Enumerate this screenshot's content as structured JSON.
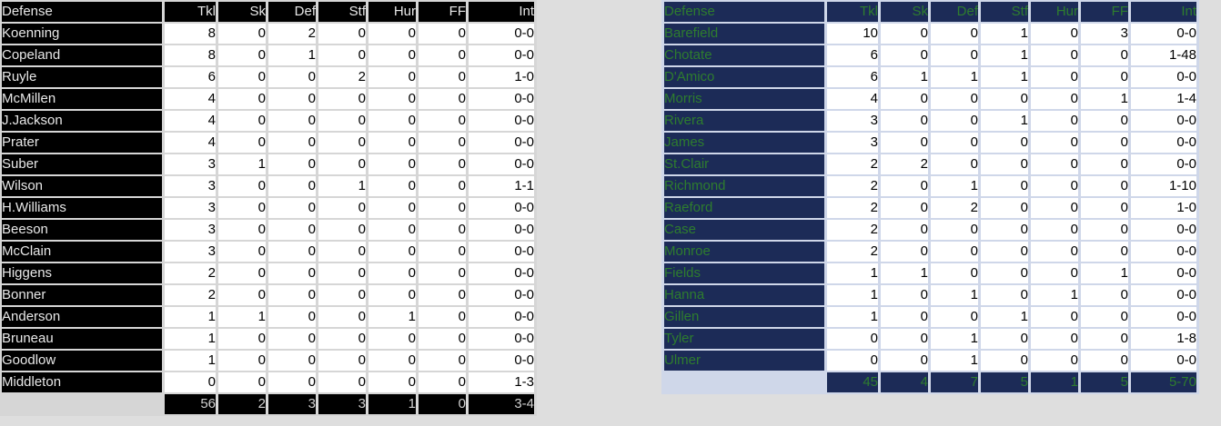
{
  "page": {
    "background": "#dedede"
  },
  "tables": [
    {
      "name": "defense-table-left",
      "theme": {
        "cell_bg": "#000000",
        "cell_text": "#e8e8e8",
        "total_text": "#d0d0d0",
        "gap": "#d6d6d6",
        "data_bg": "#ffffff",
        "data_text": "#000000"
      },
      "columns": [
        "Defense",
        "Tkl",
        "Sk",
        "Def",
        "Stf",
        "Hur",
        "FF",
        "Int"
      ],
      "rows": [
        [
          "Koenning",
          "8",
          "0",
          "2",
          "0",
          "0",
          "0",
          "0-0"
        ],
        [
          "Copeland",
          "8",
          "0",
          "1",
          "0",
          "0",
          "0",
          "0-0"
        ],
        [
          "Ruyle",
          "6",
          "0",
          "0",
          "2",
          "0",
          "0",
          "1-0"
        ],
        [
          "McMillen",
          "4",
          "0",
          "0",
          "0",
          "0",
          "0",
          "0-0"
        ],
        [
          "J.Jackson",
          "4",
          "0",
          "0",
          "0",
          "0",
          "0",
          "0-0"
        ],
        [
          "Prater",
          "4",
          "0",
          "0",
          "0",
          "0",
          "0",
          "0-0"
        ],
        [
          "Suber",
          "3",
          "1",
          "0",
          "0",
          "0",
          "0",
          "0-0"
        ],
        [
          "Wilson",
          "3",
          "0",
          "0",
          "1",
          "0",
          "0",
          "1-1"
        ],
        [
          "H.Williams",
          "3",
          "0",
          "0",
          "0",
          "0",
          "0",
          "0-0"
        ],
        [
          "Beeson",
          "3",
          "0",
          "0",
          "0",
          "0",
          "0",
          "0-0"
        ],
        [
          "McClain",
          "3",
          "0",
          "0",
          "0",
          "0",
          "0",
          "0-0"
        ],
        [
          "Higgens",
          "2",
          "0",
          "0",
          "0",
          "0",
          "0",
          "0-0"
        ],
        [
          "Bonner",
          "2",
          "0",
          "0",
          "0",
          "0",
          "0",
          "0-0"
        ],
        [
          "Anderson",
          "1",
          "1",
          "0",
          "0",
          "1",
          "0",
          "0-0"
        ],
        [
          "Bruneau",
          "1",
          "0",
          "0",
          "0",
          "0",
          "0",
          "0-0"
        ],
        [
          "Goodlow",
          "1",
          "0",
          "0",
          "0",
          "0",
          "0",
          "0-0"
        ],
        [
          "Middleton",
          "0",
          "0",
          "0",
          "0",
          "0",
          "0",
          "1-3"
        ]
      ],
      "totals": [
        "56",
        "2",
        "3",
        "3",
        "1",
        "0",
        "3-4"
      ]
    },
    {
      "name": "defense-table-right",
      "theme": {
        "cell_bg": "#1c2b57",
        "cell_text": "#2e7d2e",
        "total_text": "#2e7d2e",
        "gap": "#cfd7e9",
        "data_bg": "#ffffff",
        "data_text": "#000000"
      },
      "columns": [
        "Defense",
        "Tkl",
        "Sk",
        "Def",
        "Stf",
        "Hur",
        "FF",
        "Int"
      ],
      "rows": [
        [
          "Barefield",
          "10",
          "0",
          "0",
          "1",
          "0",
          "3",
          "0-0"
        ],
        [
          "Chotate",
          "6",
          "0",
          "0",
          "1",
          "0",
          "0",
          "1-48"
        ],
        [
          "D'Amico",
          "6",
          "1",
          "1",
          "1",
          "0",
          "0",
          "0-0"
        ],
        [
          "Morris",
          "4",
          "0",
          "0",
          "0",
          "0",
          "1",
          "1-4"
        ],
        [
          "Rivera",
          "3",
          "0",
          "0",
          "1",
          "0",
          "0",
          "0-0"
        ],
        [
          "James",
          "3",
          "0",
          "0",
          "0",
          "0",
          "0",
          "0-0"
        ],
        [
          "St.Clair",
          "2",
          "2",
          "0",
          "0",
          "0",
          "0",
          "0-0"
        ],
        [
          "Richmond",
          "2",
          "0",
          "1",
          "0",
          "0",
          "0",
          "1-10"
        ],
        [
          "Raeford",
          "2",
          "0",
          "2",
          "0",
          "0",
          "0",
          "1-0"
        ],
        [
          "Case",
          "2",
          "0",
          "0",
          "0",
          "0",
          "0",
          "0-0"
        ],
        [
          "Monroe",
          "2",
          "0",
          "0",
          "0",
          "0",
          "0",
          "0-0"
        ],
        [
          "Fields",
          "1",
          "1",
          "0",
          "0",
          "0",
          "1",
          "0-0"
        ],
        [
          "Hanna",
          "1",
          "0",
          "1",
          "0",
          "1",
          "0",
          "0-0"
        ],
        [
          "Gillen",
          "1",
          "0",
          "0",
          "1",
          "0",
          "0",
          "0-0"
        ],
        [
          "Tyler",
          "0",
          "0",
          "1",
          "0",
          "0",
          "0",
          "1-8"
        ],
        [
          "Ulmer",
          "0",
          "0",
          "1",
          "0",
          "0",
          "0",
          "0-0"
        ]
      ],
      "totals": [
        "45",
        "4",
        "7",
        "5",
        "1",
        "5",
        "5-70"
      ]
    }
  ]
}
